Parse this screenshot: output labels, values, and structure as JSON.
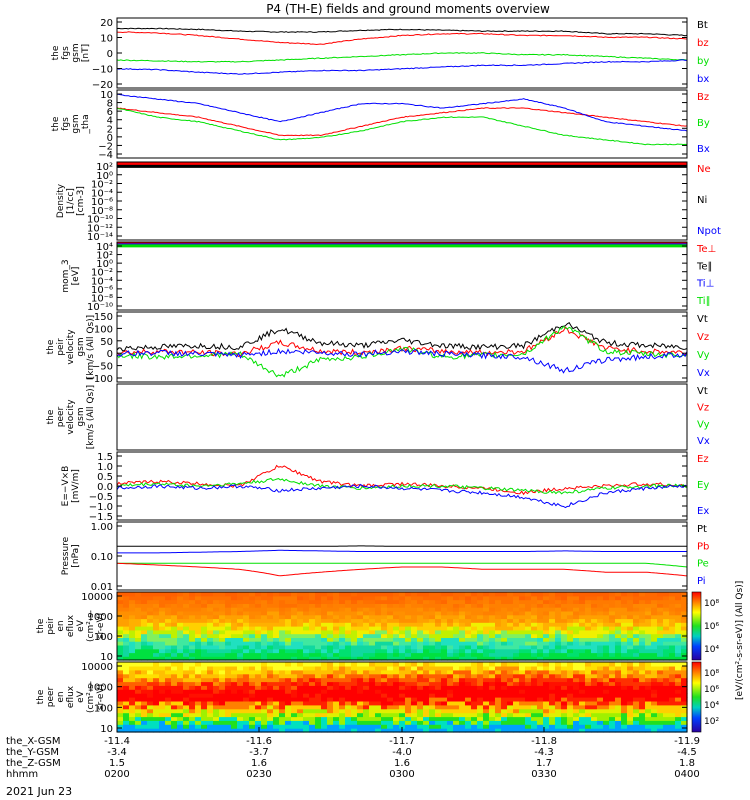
{
  "title": "P4 (TH-E) fields and ground moments overview",
  "date_label": "2021 Jun 23",
  "colors": {
    "black": "#000000",
    "red": "#ff0000",
    "green": "#00e000",
    "blue": "#0000ff"
  },
  "x_axis": {
    "rows": [
      {
        "label": "the_X-GSM",
        "values": [
          "-11.4",
          "-11.6",
          "-11.7",
          "-11.8",
          "-11.9"
        ]
      },
      {
        "label": "the_Y-GSM",
        "values": [
          "-3.4",
          "-3.7",
          "-4.0",
          "-4.3",
          "-4.5"
        ]
      },
      {
        "label": "the_Z-GSM",
        "values": [
          "1.5",
          "1.6",
          "1.6",
          "1.7",
          "1.8"
        ]
      },
      {
        "label": "hhmm",
        "values": [
          "0200",
          "0230",
          "0300",
          "0330",
          "0400"
        ]
      }
    ]
  },
  "chart_data": [
    {
      "id": "fgs",
      "type": "line",
      "ylabel": [
        "the",
        "fgs",
        "gsm",
        "[nT]"
      ],
      "ylim": [
        -20,
        20
      ],
      "ticks": [
        "20",
        "10",
        "0",
        "−10",
        "−20"
      ],
      "legend": [
        [
          "Bt",
          "black"
        ],
        [
          "bz",
          "red"
        ],
        [
          "by",
          "green"
        ],
        [
          "bx",
          "blue"
        ]
      ],
      "series": [
        {
          "name": "Bt",
          "color": "black",
          "values": [
            14,
            14,
            13.5,
            12.5,
            12,
            12,
            13,
            13.5,
            13,
            12.5,
            12.5,
            12.5,
            11,
            11,
            10
          ]
        },
        {
          "name": "bz",
          "color": "red",
          "values": [
            12,
            11.5,
            10,
            8,
            6,
            5,
            8,
            10,
            11,
            11,
            10,
            10,
            9,
            9,
            8
          ]
        },
        {
          "name": "by",
          "color": "green",
          "values": [
            -4,
            -4.5,
            -5,
            -5,
            -4,
            -3,
            -2,
            -1,
            0,
            0,
            -1,
            -1,
            -2,
            -3,
            -4
          ]
        },
        {
          "name": "bx",
          "color": "blue",
          "values": [
            -9,
            -9.5,
            -11,
            -12,
            -11,
            -10,
            -10,
            -9,
            -8,
            -7,
            -7,
            -6,
            -5,
            -5,
            -4
          ]
        }
      ]
    },
    {
      "id": "fgs-tha",
      "type": "line",
      "ylabel": [
        "the",
        "fgs",
        "gsm",
        "_tha"
      ],
      "ylim": [
        -5,
        10
      ],
      "ticks": [
        "10",
        "8",
        "6",
        "4",
        "2",
        "0",
        "−2",
        "−4"
      ],
      "legend": [
        [
          "Bz",
          "red"
        ],
        [
          "By",
          "green"
        ],
        [
          "Bx",
          "blue"
        ]
      ],
      "series": [
        {
          "name": "Bz",
          "color": "red",
          "values": [
            6,
            5,
            4,
            2,
            0,
            0,
            2,
            4,
            5,
            6,
            6,
            5,
            4,
            3,
            2
          ]
        },
        {
          "name": "By",
          "color": "green",
          "values": [
            6,
            4,
            3,
            1,
            -1,
            -0.5,
            1,
            3,
            4,
            4,
            2,
            0,
            -1,
            -2,
            -2
          ]
        },
        {
          "name": "Bx",
          "color": "blue",
          "values": [
            9,
            8,
            7,
            5,
            3,
            5,
            7,
            7,
            6,
            7,
            8,
            6,
            3,
            2,
            1
          ]
        }
      ]
    },
    {
      "id": "density",
      "type": "line",
      "ylabel": [
        "Density",
        "[1/cc]",
        "[cm-3]"
      ],
      "ylim": [
        -14,
        2
      ],
      "ticks": [
        "10²",
        "10⁰",
        "10⁻²",
        "10⁻⁴",
        "10⁻⁶",
        "10⁻⁸",
        "10⁻¹⁰",
        "10⁻¹²",
        "10⁻¹⁴"
      ],
      "legend": [
        [
          "Ne",
          "red"
        ],
        [
          "Ni",
          "black"
        ],
        [
          "Npot",
          "blue"
        ]
      ],
      "series": [
        {
          "name": "Ne",
          "color": "red",
          "values": [
            1.6,
            1.6,
            1.6,
            1.6,
            1.6,
            1.6,
            1.6,
            1.6,
            1.6,
            1.6,
            1.6,
            1.6,
            1.6,
            1.6,
            1.6
          ]
        },
        {
          "name": "Ni",
          "color": "black",
          "values": [
            1.1,
            1.1,
            1.1,
            1.1,
            1.1,
            1.1,
            1.1,
            1.1,
            1.1,
            1.1,
            1.1,
            1.1,
            1.1,
            1.1,
            1.1
          ]
        }
      ]
    },
    {
      "id": "temp",
      "type": "line",
      "ylabel": [
        "mom_3",
        "[eV]"
      ],
      "ylim": [
        -10,
        4
      ],
      "ticks": [
        "10⁴",
        "10²",
        "10⁰",
        "10⁻²",
        "10⁻⁴",
        "10⁻⁶",
        "10⁻⁸",
        "10⁻¹⁰"
      ],
      "legend": [
        [
          "Te⊥",
          "red"
        ],
        [
          "Te∥",
          "black"
        ],
        [
          "Ti⊥",
          "blue"
        ],
        [
          "Ti∥",
          "green"
        ]
      ],
      "series": [
        {
          "name": "Te⊥",
          "color": "red",
          "values": [
            3.6,
            3.6,
            3.6,
            3.6,
            3.6,
            3.6,
            3.6,
            3.6,
            3.6,
            3.6,
            3.6,
            3.6,
            3.6,
            3.6,
            3.6
          ]
        },
        {
          "name": "Ti⊥",
          "color": "blue",
          "values": [
            3.4,
            3.4,
            3.4,
            3.4,
            3.4,
            3.4,
            3.4,
            3.4,
            3.4,
            3.4,
            3.4,
            3.4,
            3.4,
            3.4,
            3.4
          ]
        },
        {
          "name": "Ti∥",
          "color": "green",
          "values": [
            3.2,
            3.2,
            3.2,
            3.2,
            3.2,
            3.2,
            3.2,
            3.2,
            3.2,
            3.2,
            3.2,
            3.2,
            3.2,
            3.2,
            3.2
          ]
        }
      ]
    },
    {
      "id": "peir-vel",
      "type": "line",
      "ylabel": [
        "the",
        "peir",
        "velocity",
        "gsm",
        "[km/s (All Qs)]"
      ],
      "ylim": [
        -100,
        150
      ],
      "ticks": [
        "150",
        "100",
        "50",
        "0",
        "−50",
        "−100"
      ],
      "legend": [
        [
          "Vt",
          "black"
        ],
        [
          "Vz",
          "red"
        ],
        [
          "Vy",
          "green"
        ],
        [
          "Vx",
          "blue"
        ]
      ],
      "series": [
        {
          "name": "Vt",
          "color": "black",
          "values": [
            20,
            25,
            30,
            25,
            90,
            40,
            30,
            50,
            30,
            25,
            30,
            110,
            40,
            30,
            25
          ]
        },
        {
          "name": "Vz",
          "color": "red",
          "values": [
            5,
            10,
            5,
            0,
            40,
            10,
            5,
            20,
            10,
            5,
            10,
            90,
            20,
            10,
            5
          ]
        },
        {
          "name": "Vy",
          "color": "green",
          "values": [
            -5,
            -10,
            -5,
            0,
            -80,
            -20,
            -10,
            20,
            -10,
            -5,
            0,
            100,
            10,
            0,
            -5
          ]
        },
        {
          "name": "Vx",
          "color": "blue",
          "values": [
            0,
            5,
            0,
            -5,
            10,
            5,
            0,
            10,
            0,
            -5,
            -10,
            -60,
            -20,
            -10,
            0
          ]
        }
      ]
    },
    {
      "id": "peer-vel",
      "type": "line",
      "ylabel": [
        "the",
        "peer",
        "velocity",
        "gsm",
        "[km/s (All Qs)]"
      ],
      "ylim": [
        0,
        1
      ],
      "ticks": [],
      "legend": [
        [
          "Vt",
          "black"
        ],
        [
          "Vz",
          "red"
        ],
        [
          "Vy",
          "green"
        ],
        [
          "Vx",
          "blue"
        ]
      ],
      "series": []
    },
    {
      "id": "efield",
      "type": "line",
      "ylabel": [
        "E=−V×B",
        "[mV/m]"
      ],
      "ylim": [
        -1.5,
        1.5
      ],
      "ticks": [
        "1.5",
        "1.0",
        "0.5",
        "0.0",
        "−0.5",
        "−1.0",
        "−1.5"
      ],
      "legend": [
        [
          "Ez",
          "red"
        ],
        [
          "Ey",
          "green"
        ],
        [
          "Ex",
          "blue"
        ]
      ],
      "series": [
        {
          "name": "Ez",
          "color": "red",
          "values": [
            0.1,
            0.2,
            0.1,
            0,
            0.9,
            0.2,
            0,
            0.1,
            0,
            -0.1,
            -0.3,
            -0.1,
            0,
            0.1,
            0
          ]
        },
        {
          "name": "Ey",
          "color": "green",
          "values": [
            0,
            0.1,
            0,
            0.1,
            0.3,
            0,
            -0.1,
            0,
            0,
            -0.1,
            -0.2,
            -0.3,
            -0.1,
            0,
            0
          ]
        },
        {
          "name": "Ex",
          "color": "blue",
          "values": [
            -0.1,
            0,
            -0.1,
            0,
            -0.2,
            -0.1,
            0,
            -0.1,
            -0.2,
            -0.3,
            -0.5,
            -0.9,
            -0.3,
            -0.1,
            0
          ]
        }
      ]
    },
    {
      "id": "pressure",
      "type": "line",
      "ylabel": [
        "Pressure",
        "[nPa]"
      ],
      "ylim": [
        -2,
        0.3
      ],
      "log": true,
      "ticks": [
        "1.00",
        "0.10",
        "0.01"
      ],
      "legend": [
        [
          "Pt",
          "black"
        ],
        [
          "Pb",
          "red"
        ],
        [
          "Pe",
          "green"
        ],
        [
          "Pi",
          "blue"
        ]
      ],
      "series": [
        {
          "name": "Pt",
          "color": "black",
          "values": [
            0.3,
            0.3,
            0.3,
            0.3,
            0.3,
            0.3,
            0.31,
            0.3,
            0.3,
            0.3,
            0.3,
            0.3,
            0.3,
            0.3,
            0.3
          ]
        },
        {
          "name": "Pi",
          "color": "blue",
          "values": [
            0.18,
            0.18,
            0.19,
            0.2,
            0.22,
            0.21,
            0.2,
            0.2,
            0.2,
            0.2,
            0.2,
            0.21,
            0.2,
            0.2,
            0.2
          ]
        },
        {
          "name": "Pe",
          "color": "green",
          "values": [
            0.08,
            0.08,
            0.08,
            0.08,
            0.08,
            0.08,
            0.08,
            0.08,
            0.08,
            0.08,
            0.08,
            0.08,
            0.08,
            0.08,
            0.06
          ]
        },
        {
          "name": "Pb",
          "color": "red",
          "values": [
            0.08,
            0.07,
            0.06,
            0.05,
            0.03,
            0.04,
            0.05,
            0.06,
            0.06,
            0.05,
            0.05,
            0.05,
            0.04,
            0.04,
            0.03
          ]
        }
      ]
    },
    {
      "id": "peir-spec",
      "type": "heatmap",
      "ylabel": [
        "the",
        "peir",
        "en",
        "eflux",
        "eV",
        "(cm²-s-",
        "sr-eV)"
      ],
      "ticks": [
        "10000",
        "1000",
        "100",
        "10"
      ]
    },
    {
      "id": "peer-spec",
      "type": "heatmap",
      "ylabel": [
        "the",
        "peer",
        "en",
        "eflux",
        "eV",
        "(cm²-s-",
        "sr-eV)"
      ],
      "ticks": [
        "10000",
        "1000",
        "100",
        "10"
      ]
    }
  ],
  "colorbars": [
    {
      "ticks": [
        "10⁸",
        "10⁶",
        "10⁴"
      ]
    },
    {
      "ticks": [
        "10⁸",
        "10⁶",
        "10⁴",
        "10²"
      ]
    }
  ],
  "colorbar_label": "[eV/(cm²-s-sr-eV)] (All Qs)]"
}
